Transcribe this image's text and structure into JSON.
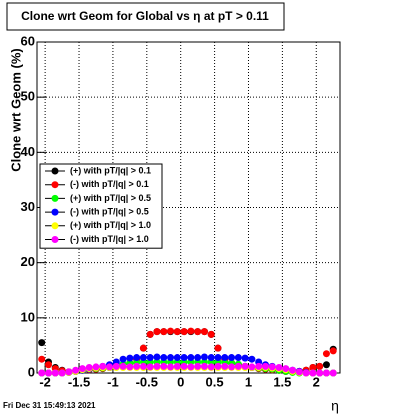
{
  "chart_data": {
    "type": "scatter",
    "title": "Clone wrt Geom for Global vs   η at pT > 0.11",
    "y_label": "Clone wrt Geom (%)",
    "x_label": "η",
    "footer": "Fri Dec 31 15:49:13 2021",
    "xlim": [
      -2.12,
      2.35
    ],
    "ylim": [
      0,
      60
    ],
    "xticks": [
      -2,
      -1.5,
      -1,
      -0.5,
      0,
      0.5,
      1,
      1.5,
      2
    ],
    "yticks": [
      0,
      10,
      20,
      30,
      40,
      50,
      60
    ],
    "grid": true,
    "x": [
      -2.05,
      -1.95,
      -1.85,
      -1.75,
      -1.65,
      -1.55,
      -1.45,
      -1.35,
      -1.25,
      -1.15,
      -1.05,
      -0.95,
      -0.85,
      -0.75,
      -0.65,
      -0.55,
      -0.45,
      -0.35,
      -0.25,
      -0.15,
      -0.05,
      0.05,
      0.15,
      0.25,
      0.35,
      0.45,
      0.55,
      0.65,
      0.75,
      0.85,
      0.95,
      1.05,
      1.15,
      1.25,
      1.35,
      1.45,
      1.55,
      1.65,
      1.75,
      1.85,
      1.95,
      2.05,
      2.15,
      2.25
    ],
    "series": [
      {
        "name": "(+) with pT/|q| > 0.1",
        "color": "#000000",
        "values": [
          5.5,
          2.0,
          1.0,
          0.5,
          0.2,
          0.3,
          0.5,
          0.6,
          0.7,
          0.8,
          1.0,
          1.2,
          1.5,
          1.8,
          2.5,
          4.5,
          7.0,
          7.5,
          7.5,
          7.5,
          7.5,
          7.5,
          7.5,
          7.5,
          7.5,
          7.0,
          4.5,
          2.5,
          1.8,
          1.5,
          1.2,
          1.0,
          0.8,
          0.7,
          0.6,
          0.5,
          0.3,
          0.2,
          0.3,
          0.5,
          1.0,
          1.2,
          1.5,
          4.3
        ]
      },
      {
        "name": "(-) with pT/|q| > 0.1",
        "color": "#ff0000",
        "values": [
          2.5,
          1.5,
          0.8,
          0.4,
          0.2,
          0.3,
          0.5,
          0.6,
          0.7,
          0.8,
          1.0,
          1.2,
          1.5,
          1.8,
          2.5,
          4.5,
          7.0,
          7.5,
          7.5,
          7.6,
          7.5,
          7.5,
          7.6,
          7.5,
          7.5,
          7.0,
          4.5,
          2.5,
          1.8,
          1.5,
          1.2,
          1.0,
          0.8,
          0.7,
          0.6,
          0.5,
          0.3,
          0.2,
          0.3,
          0.5,
          1.0,
          1.2,
          3.5,
          4.0
        ]
      },
      {
        "name": "(+) with pT/|q| > 0.5",
        "color": "#00ff00",
        "values": [
          0,
          0,
          0,
          0,
          0.1,
          0.3,
          0.5,
          0.7,
          0.8,
          0.9,
          1.0,
          1.2,
          1.6,
          1.8,
          1.9,
          2.0,
          2.0,
          2.0,
          2.0,
          2.0,
          2.0,
          2.0,
          2.0,
          2.0,
          2.0,
          2.0,
          2.0,
          1.9,
          1.8,
          1.6,
          1.2,
          1.0,
          0.9,
          0.8,
          0.7,
          0.5,
          0.3,
          0.1,
          0,
          0,
          0,
          0,
          0,
          0
        ]
      },
      {
        "name": "(-) with pT/|q| > 0.5",
        "color": "#0000ff",
        "values": [
          0,
          0,
          0,
          0,
          0.1,
          0.3,
          0.5,
          0.7,
          0.9,
          1.2,
          1.5,
          2.0,
          2.5,
          2.7,
          2.8,
          2.8,
          2.8,
          2.9,
          2.8,
          2.8,
          2.8,
          2.8,
          2.8,
          2.8,
          2.9,
          2.8,
          2.8,
          2.8,
          2.8,
          2.8,
          2.7,
          2.5,
          2.0,
          1.5,
          1.2,
          0.9,
          0.7,
          0.5,
          0.3,
          0.1,
          0,
          0,
          0,
          0
        ]
      },
      {
        "name": "(+) with pT/|q| > 1.0",
        "color": "#ffff00",
        "values": [
          0,
          0,
          0,
          0,
          0.1,
          0.3,
          0.6,
          0.8,
          0.9,
          1.0,
          1.0,
          1.0,
          1.0,
          1.0,
          1.0,
          1.0,
          1.0,
          1.0,
          1.0,
          1.0,
          1.0,
          1.0,
          1.0,
          1.0,
          1.0,
          1.0,
          1.0,
          1.0,
          1.0,
          1.0,
          1.0,
          1.0,
          1.0,
          1.0,
          0.9,
          0.8,
          0.6,
          0.3,
          0.1,
          0,
          0,
          0,
          0,
          0
        ]
      },
      {
        "name": "(-) with pT/|q| > 1.0",
        "color": "#ff00ff",
        "values": [
          0,
          0,
          0,
          0,
          0.2,
          0.5,
          0.8,
          1.0,
          1.1,
          1.2,
          1.1,
          1.2,
          1.2,
          1.1,
          1.2,
          1.2,
          1.1,
          1.2,
          1.2,
          1.1,
          1.2,
          1.2,
          1.1,
          1.2,
          1.2,
          1.1,
          1.2,
          1.2,
          1.1,
          1.2,
          1.2,
          1.1,
          1.2,
          1.2,
          1.1,
          1.0,
          0.8,
          0.5,
          0.2,
          0,
          0,
          0,
          0,
          0
        ]
      }
    ]
  }
}
